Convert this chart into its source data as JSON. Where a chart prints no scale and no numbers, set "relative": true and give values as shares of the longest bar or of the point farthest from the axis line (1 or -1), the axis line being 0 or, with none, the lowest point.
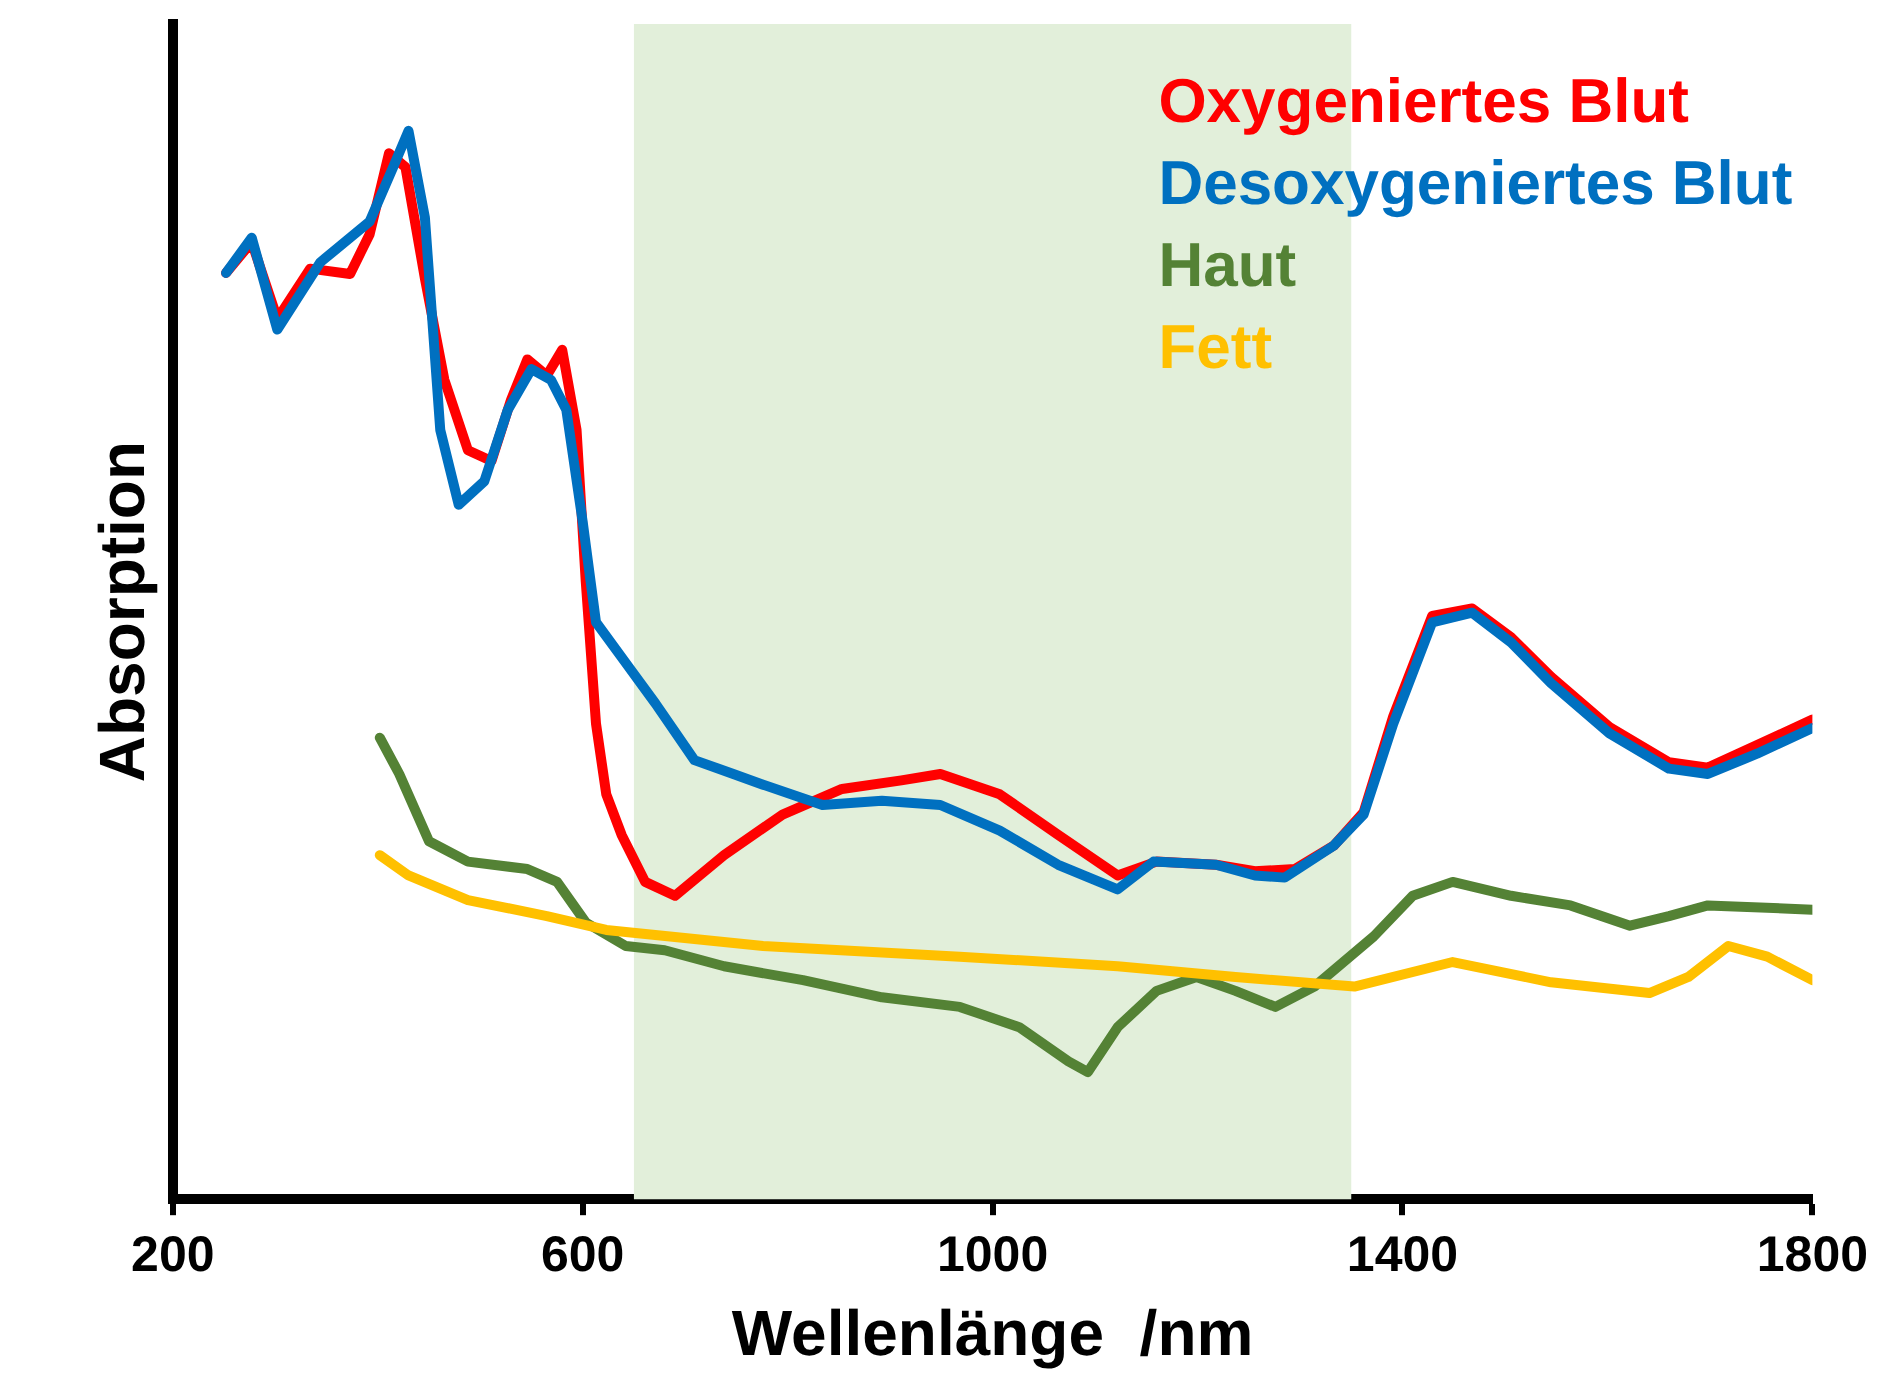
{
  "chart_data": {
    "type": "line",
    "relative": true,
    "xlabel": "Wellenlänge  /nm",
    "ylabel": "Absorption",
    "xlim": [
      200,
      1800
    ],
    "xticks": [
      200,
      600,
      1000,
      1400,
      1800
    ],
    "grid": false,
    "legend": "top right",
    "marker": "none",
    "line_style": "solid",
    "bands": [
      {
        "axis": "x",
        "from": 650,
        "to": 1350,
        "color": "#e2efda"
      }
    ],
    "series": [
      {
        "name": "Oxygeniertes Blut",
        "color": "#ff0000",
        "x": [
          252,
          277,
          302,
          334,
          373,
          392,
          411,
          427,
          446,
          465,
          488,
          511,
          530,
          546,
          565,
          580,
          594,
          603,
          613,
          623,
          638,
          661,
          690,
          738,
          795,
          853,
          911,
          949,
          1007,
          1064,
          1122,
          1160,
          1218,
          1256,
          1295,
          1333,
          1362,
          1391,
          1429,
          1468,
          1506,
          1545,
          1602,
          1660,
          1698,
          1746,
          1800
        ],
        "values": [
          0.867,
          0.896,
          0.824,
          0.871,
          0.866,
          0.903,
          0.979,
          0.966,
          0.862,
          0.767,
          0.701,
          0.691,
          0.748,
          0.786,
          0.771,
          0.795,
          0.72,
          0.578,
          0.445,
          0.379,
          0.341,
          0.297,
          0.284,
          0.322,
          0.36,
          0.384,
          0.392,
          0.398,
          0.379,
          0.341,
          0.303,
          0.316,
          0.313,
          0.307,
          0.309,
          0.331,
          0.362,
          0.452,
          0.546,
          0.553,
          0.526,
          0.489,
          0.442,
          0.409,
          0.404,
          0.425,
          0.449
        ]
      },
      {
        "name": "Desoxygeniertes Blut",
        "color": "#0070c0",
        "x": [
          252,
          277,
          302,
          344,
          392,
          415,
          430,
          446,
          461,
          479,
          504,
          527,
          550,
          569,
          584,
          600,
          613,
          642,
          671,
          709,
          747,
          776,
          834,
          892,
          949,
          1007,
          1064,
          1122,
          1157,
          1218,
          1256,
          1285,
          1333,
          1362,
          1391,
          1429,
          1468,
          1506,
          1545,
          1602,
          1660,
          1698,
          1746,
          1800
        ],
        "values": [
          0.867,
          0.9,
          0.814,
          0.877,
          0.915,
          0.966,
          1,
          0.919,
          0.72,
          0.65,
          0.672,
          0.739,
          0.777,
          0.767,
          0.739,
          0.634,
          0.54,
          0.502,
          0.464,
          0.411,
          0.398,
          0.388,
          0.369,
          0.373,
          0.369,
          0.345,
          0.313,
          0.29,
          0.316,
          0.313,
          0.303,
          0.301,
          0.331,
          0.36,
          0.445,
          0.54,
          0.549,
          0.521,
          0.483,
          0.436,
          0.403,
          0.398,
          0.417,
          0.441
        ]
      },
      {
        "name": "Haut",
        "color": "#548235",
        "x": [
          402,
          421,
          450,
          488,
          546,
          575,
          603,
          642,
          680,
          738,
          815,
          892,
          968,
          1026,
          1074,
          1093,
          1122,
          1160,
          1199,
          1237,
          1276,
          1314,
          1372,
          1410,
          1449,
          1506,
          1564,
          1622,
          1660,
          1698,
          1800
        ],
        "values": [
          0.432,
          0.398,
          0.335,
          0.316,
          0.309,
          0.297,
          0.259,
          0.237,
          0.233,
          0.218,
          0.205,
          0.189,
          0.18,
          0.161,
          0.129,
          0.119,
          0.161,
          0.195,
          0.208,
          0.195,
          0.18,
          0.199,
          0.246,
          0.284,
          0.297,
          0.284,
          0.275,
          0.256,
          0.265,
          0.275,
          0.271
        ]
      },
      {
        "name": "Fett",
        "color": "#ffc000",
        "x": [
          402,
          430,
          488,
          565,
          623,
          776,
          968,
          1122,
          1237,
          1353,
          1449,
          1545,
          1641,
          1679,
          1718,
          1756,
          1800
        ],
        "values": [
          0.322,
          0.303,
          0.28,
          0.265,
          0.252,
          0.237,
          0.227,
          0.218,
          0.208,
          0.199,
          0.222,
          0.203,
          0.193,
          0.208,
          0.237,
          0.227,
          0.205
        ]
      }
    ]
  }
}
